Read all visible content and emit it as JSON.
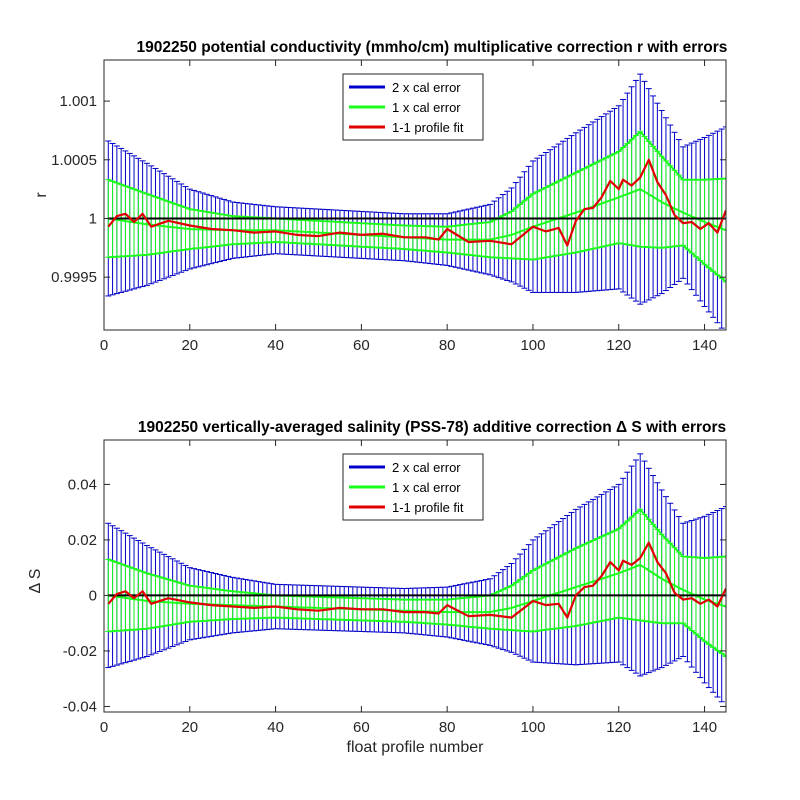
{
  "colors": {
    "cal2": "#0000c8",
    "cal1": "#19ff19",
    "fit": "#e00000",
    "zero": "#000000",
    "background": "#ffffff"
  },
  "chart_data": [
    {
      "type": "line",
      "title": "1902250 potential conductivity (mmho/cm) multiplicative correction r with errors",
      "xlabel": "",
      "ylabel": "r",
      "xlim": [
        0,
        145
      ],
      "ylim": [
        0.99905,
        1.00135
      ],
      "xticks": [
        0,
        20,
        40,
        60,
        80,
        100,
        120,
        140
      ],
      "yticks": [
        0.9995,
        1,
        1.0005,
        1.001
      ],
      "ytick_labels": [
        "0.9995",
        "1",
        "1.0005",
        "1.001"
      ],
      "reference_line": 1,
      "legend": {
        "location": "top-center",
        "entries": [
          "2 x cal error",
          "1 x cal error",
          "1-1 profile fit"
        ]
      },
      "calibration_center": {
        "x": [
          1,
          10,
          20,
          30,
          40,
          50,
          60,
          70,
          80,
          90,
          95,
          100,
          110,
          120,
          125,
          130,
          135,
          140,
          145
        ],
        "y": [
          1.0,
          0.99995,
          0.99991,
          0.9999,
          0.9999,
          0.99988,
          0.99986,
          0.99984,
          0.99982,
          0.99982,
          0.99986,
          0.99993,
          1.00005,
          1.00018,
          1.00025,
          1.00014,
          1.00005,
          0.99997,
          0.9999
        ]
      },
      "calibration_error_1x": {
        "x": [
          1,
          10,
          20,
          30,
          40,
          50,
          60,
          70,
          80,
          90,
          95,
          100,
          110,
          120,
          125,
          130,
          135,
          140,
          145
        ],
        "y": [
          0.00033,
          0.00026,
          0.00017,
          0.00012,
          0.0001,
          0.0001,
          0.0001,
          0.0001,
          0.00011,
          0.00015,
          0.0002,
          0.00028,
          0.00034,
          0.00039,
          0.00049,
          0.00039,
          0.00028,
          0.00036,
          0.00044
        ]
      },
      "profile_fit": {
        "x": [
          1,
          3,
          5,
          7,
          9,
          11,
          15,
          20,
          25,
          30,
          35,
          40,
          45,
          50,
          55,
          60,
          65,
          70,
          75,
          78,
          80,
          85,
          90,
          95,
          100,
          103,
          106,
          108,
          110,
          112,
          114,
          116,
          118,
          120,
          121,
          123,
          125,
          127,
          129,
          131,
          133,
          135,
          137,
          139,
          141,
          143,
          145
        ],
        "y": [
          0.99993,
          1.00002,
          1.00004,
          0.99997,
          1.00004,
          0.99993,
          0.99998,
          0.99994,
          0.99991,
          0.9999,
          0.99988,
          0.99989,
          0.99986,
          0.99985,
          0.99988,
          0.99986,
          0.99987,
          0.99984,
          0.99984,
          0.99982,
          0.99991,
          0.9998,
          0.99981,
          0.99978,
          0.99993,
          0.99989,
          0.99992,
          0.99977,
          0.99998,
          1.00008,
          1.00009,
          1.00018,
          1.00032,
          1.00025,
          1.00033,
          1.00028,
          1.00035,
          1.0005,
          1.00031,
          1.0002,
          1.00003,
          0.99996,
          0.99997,
          0.99991,
          0.99996,
          0.99988,
          1.00007
        ]
      }
    },
    {
      "type": "line",
      "title": "1902250 vertically-averaged salinity (PSS-78) additive correction Δ S with errors",
      "xlabel": "float profile number",
      "ylabel": "Δ S",
      "xlim": [
        0,
        145
      ],
      "ylim": [
        -0.042,
        0.056
      ],
      "xticks": [
        0,
        20,
        40,
        60,
        80,
        100,
        120,
        140
      ],
      "yticks": [
        -0.04,
        -0.02,
        0,
        0.02,
        0.04
      ],
      "ytick_labels": [
        "-0.04",
        "-0.02",
        "0",
        "0.02",
        "0.04"
      ],
      "reference_line": 0,
      "legend": {
        "location": "top-center",
        "entries": [
          "2 x cal error",
          "1 x cal error",
          "1-1 profile fit"
        ]
      },
      "calibration_center": {
        "x": [
          1,
          10,
          20,
          30,
          40,
          50,
          60,
          70,
          80,
          90,
          95,
          100,
          110,
          120,
          125,
          130,
          135,
          140,
          145
        ],
        "y": [
          0.0,
          -0.002,
          -0.003,
          -0.0035,
          -0.004,
          -0.0045,
          -0.005,
          -0.0055,
          -0.006,
          -0.006,
          -0.0045,
          -0.002,
          0.003,
          0.008,
          0.011,
          0.006,
          0.002,
          -0.0015,
          -0.004
        ]
      },
      "calibration_error_1x": {
        "x": [
          1,
          10,
          20,
          30,
          40,
          50,
          60,
          70,
          80,
          90,
          95,
          100,
          110,
          120,
          125,
          130,
          135,
          140,
          145
        ],
        "y": [
          0.013,
          0.01,
          0.0065,
          0.005,
          0.004,
          0.004,
          0.004,
          0.004,
          0.0045,
          0.006,
          0.008,
          0.011,
          0.014,
          0.016,
          0.02,
          0.016,
          0.012,
          0.015,
          0.018
        ]
      },
      "profile_fit": {
        "x": [
          1,
          3,
          5,
          7,
          9,
          11,
          15,
          20,
          25,
          30,
          35,
          40,
          45,
          50,
          55,
          60,
          65,
          70,
          75,
          78,
          80,
          85,
          90,
          95,
          100,
          103,
          106,
          108,
          110,
          112,
          114,
          116,
          118,
          120,
          121,
          123,
          125,
          127,
          129,
          131,
          133,
          135,
          137,
          139,
          141,
          143,
          145
        ],
        "y": [
          -0.003,
          0.0005,
          0.0015,
          -0.001,
          0.0015,
          -0.003,
          -0.001,
          -0.0025,
          -0.0035,
          -0.004,
          -0.0045,
          -0.004,
          -0.005,
          -0.0055,
          -0.0045,
          -0.005,
          -0.005,
          -0.006,
          -0.006,
          -0.0065,
          -0.0035,
          -0.0075,
          -0.007,
          -0.008,
          -0.002,
          -0.0035,
          -0.003,
          -0.008,
          0.0,
          0.003,
          0.0035,
          0.007,
          0.012,
          0.009,
          0.0125,
          0.011,
          0.0135,
          0.019,
          0.012,
          0.008,
          0.001,
          -0.0015,
          -0.001,
          -0.003,
          -0.0015,
          -0.004,
          0.0025
        ]
      }
    }
  ]
}
